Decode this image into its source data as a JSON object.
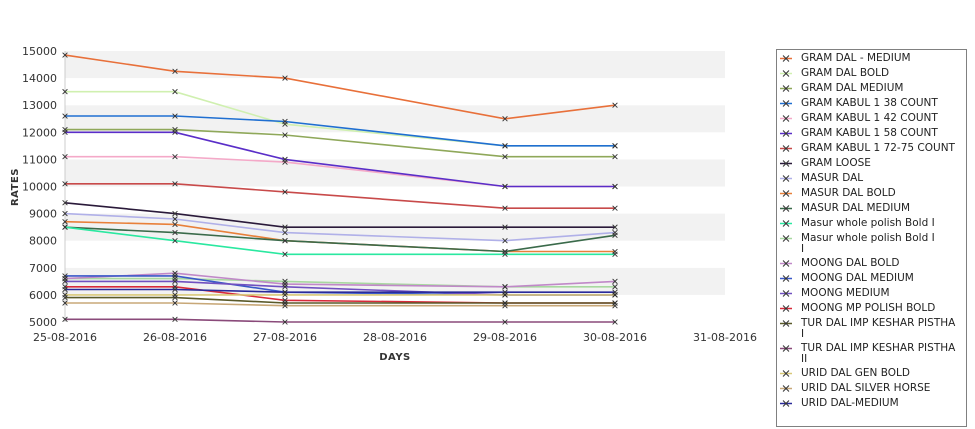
{
  "chart_data": {
    "type": "line",
    "xlabel": "DAYS",
    "ylabel": "RATES",
    "xlim": [
      "25-08-2016",
      "31-08-2016"
    ],
    "ylim": [
      5000,
      15000
    ],
    "x_ticks": [
      "25-08-2016",
      "26-08-2016",
      "27-08-2016",
      "28-08-2016",
      "29-08-2016",
      "30-08-2016",
      "31-08-2016"
    ],
    "y_ticks": [
      5000,
      6000,
      7000,
      8000,
      9000,
      10000,
      11000,
      12000,
      13000,
      14000,
      15000
    ],
    "x": [
      "25-08-2016",
      "26-08-2016",
      "27-08-2016",
      "29-08-2016",
      "30-08-2016"
    ],
    "legend_position": "right",
    "grid": "alternating horizontal bands",
    "series": [
      {
        "name": "GRAM DAL - MEDIUM",
        "color": "#e8703a",
        "values": [
          14850,
          14250,
          14000,
          12500,
          13000
        ]
      },
      {
        "name": "GRAM DAL BOLD",
        "color": "#d0f0b0",
        "values": [
          13500,
          13500,
          12300,
          11500,
          11500
        ]
      },
      {
        "name": "GRAM DAL MEDIUM",
        "color": "#8fa85a",
        "values": [
          12100,
          12100,
          11900,
          11100,
          11100
        ]
      },
      {
        "name": "GRAM KABUL 1 38 COUNT",
        "color": "#1f6fd1",
        "values": [
          12600,
          12600,
          12400,
          11500,
          11500
        ]
      },
      {
        "name": "GRAM KABUL 1 42 COUNT",
        "color": "#f4a9c8",
        "values": [
          11100,
          11100,
          10900,
          10000,
          10000
        ]
      },
      {
        "name": "GRAM KABUL 1 58 COUNT",
        "color": "#5a2ec8",
        "values": [
          12000,
          12000,
          11000,
          10000,
          10000
        ]
      },
      {
        "name": "GRAM KABUL 1 72-75 COUNT",
        "color": "#c84a4a",
        "values": [
          10100,
          10100,
          9800,
          9200,
          9200
        ]
      },
      {
        "name": "GRAM LOOSE",
        "color": "#2a1a3a",
        "values": [
          9400,
          9000,
          8500,
          8500,
          8500
        ]
      },
      {
        "name": "MASUR DAL",
        "color": "#b0b0e8",
        "values": [
          9000,
          8800,
          8300,
          8000,
          8300
        ]
      },
      {
        "name": "MASUR DAL BOLD",
        "color": "#e8803a",
        "values": [
          8700,
          8600,
          8000,
          7600,
          7600
        ]
      },
      {
        "name": "MASUR DAL MEDIUM",
        "color": "#3a6a4a",
        "values": [
          8500,
          8300,
          8000,
          7600,
          8200
        ]
      },
      {
        "name": "Masur whole polish Bold I",
        "color": "#2ae8a0",
        "values": [
          8500,
          8000,
          7500,
          7500,
          7500
        ]
      },
      {
        "name": "Masur whole polish Bold I\nI",
        "color": "#a8d8a0",
        "values": [
          6600,
          6600,
          6500,
          6300,
          6300
        ]
      },
      {
        "name": "MOONG DAL BOLD",
        "color": "#c088c8",
        "values": [
          6600,
          6800,
          6400,
          6300,
          6500
        ]
      },
      {
        "name": "MOONG DAL MEDIUM",
        "color": "#3a58c8",
        "values": [
          6700,
          6700,
          6100,
          6000,
          6000
        ]
      },
      {
        "name": "MOONG MEDIUM",
        "color": "#7050c0",
        "values": [
          6500,
          6500,
          6300,
          6000,
          6000
        ]
      },
      {
        "name": "MOONG MP POLISH BOLD",
        "color": "#d82a3a",
        "values": [
          6300,
          6300,
          5800,
          5700,
          5700
        ]
      },
      {
        "name": "TUR DAL IMP KESHAR PISTHA\n I",
        "color": "#5a5a2a",
        "values": [
          5900,
          5900,
          5700,
          5700,
          5700
        ]
      },
      {
        "name": "TUR DAL IMP KESHAR PISTHA\n II",
        "color": "#8a4a7a",
        "values": [
          5100,
          5100,
          5000,
          5000,
          5000
        ]
      },
      {
        "name": "URID DAL GEN BOLD",
        "color": "#d8c878",
        "values": [
          6000,
          6000,
          6000,
          6000,
          6000
        ]
      },
      {
        "name": "URID DAL SILVER HORSE",
        "color": "#c8a878",
        "values": [
          5700,
          5700,
          5600,
          5600,
          5600
        ]
      },
      {
        "name": "URID DAL-MEDIUM",
        "color": "#2a2a9a",
        "values": [
          6200,
          6200,
          6100,
          6100,
          6100
        ]
      }
    ]
  }
}
